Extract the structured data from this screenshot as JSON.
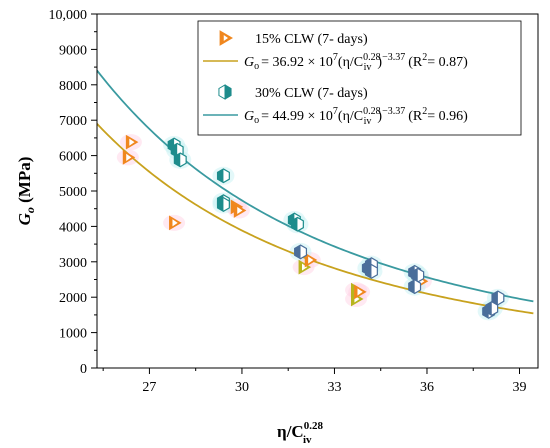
{
  "chart_data": {
    "type": "scatter",
    "xlabel": "η/C",
    "xlabel_sub": "iv",
    "xlabel_sup": "0.28",
    "ylabel": "G",
    "ylabel_sub": "o",
    "ylabel_unit": " (MPa)",
    "xlim": [
      25.3,
      39.6
    ],
    "ylim": [
      0,
      10000
    ],
    "x_ticks": [
      27,
      30,
      33,
      36,
      39
    ],
    "x_tick_labels": [
      "27",
      "30",
      "33",
      "36",
      "39"
    ],
    "y_ticks": [
      0,
      1000,
      2000,
      3000,
      4000,
      5000,
      6000,
      7000,
      8000,
      9000,
      10000
    ],
    "y_tick_labels": [
      "0",
      "1000",
      "2000",
      "3000",
      "4000",
      "5000",
      "6000",
      "7000",
      "8000",
      "9000",
      "10,000"
    ],
    "grid": false,
    "legend_position": "top-right",
    "series": [
      {
        "name": "15% CLW (7- days)",
        "marker": "triangle-right",
        "color": "#f0871e",
        "points": [
          {
            "x": 26.4,
            "y": 6380,
            "color": "#f0871e"
          },
          {
            "x": 26.3,
            "y": 5950,
            "color": "#f0871e"
          },
          {
            "x": 27.8,
            "y": 4100,
            "color": "#f0871e"
          },
          {
            "x": 29.8,
            "y": 4550,
            "color": "#f0871e"
          },
          {
            "x": 29.9,
            "y": 4450,
            "color": "#f0871e"
          },
          {
            "x": 32.0,
            "y": 2850,
            "color": "#b8b41e"
          },
          {
            "x": 32.2,
            "y": 3050,
            "color": "#f0871e"
          },
          {
            "x": 33.7,
            "y": 2200,
            "color": "#b8b41e"
          },
          {
            "x": 33.7,
            "y": 1950,
            "color": "#b8b41e"
          },
          {
            "x": 33.8,
            "y": 2150,
            "color": "#f0871e"
          },
          {
            "x": 35.8,
            "y": 2450,
            "color": "#f0871e"
          }
        ],
        "fit_label_prefix": "G",
        "fit_label_sub": "o",
        "fit_label_body": "= 36.92 × 10",
        "fit_label_exp1": "7",
        "fit_label_mid": "(η/C",
        "fit_label_sub2": "iv",
        "fit_label_sup2": "0.28",
        "fit_label_close": ")",
        "fit_label_exp2": "−3.37",
        "fit_label_r2_open": "(R",
        "fit_label_r2_sup": "2",
        "fit_label_r2_val": "= 0.87)",
        "fit": {
          "a": 369200000,
          "b": -3.37,
          "color": "#c8a21e"
        }
      },
      {
        "name": "30% CLW (7- days)",
        "marker": "hexagon",
        "color": "#1e8c8c",
        "points": [
          {
            "x": 27.8,
            "y": 6300,
            "color": "#1e8c8c"
          },
          {
            "x": 27.9,
            "y": 6150,
            "color": "#1e8c8c"
          },
          {
            "x": 28.0,
            "y": 5880,
            "color": "#1e8c8c"
          },
          {
            "x": 29.4,
            "y": 5430,
            "color": "#1e8c8c"
          },
          {
            "x": 29.4,
            "y": 4700,
            "color": "#1e8c8c"
          },
          {
            "x": 29.4,
            "y": 4620,
            "color": "#1e8c8c"
          },
          {
            "x": 31.7,
            "y": 4180,
            "color": "#1e8c8c"
          },
          {
            "x": 31.8,
            "y": 4060,
            "color": "#1e8c8c"
          },
          {
            "x": 31.9,
            "y": 3280,
            "color": "#4a6e9a"
          },
          {
            "x": 34.1,
            "y": 2820,
            "color": "#4a6e9a"
          },
          {
            "x": 34.2,
            "y": 2920,
            "color": "#4a6e9a"
          },
          {
            "x": 34.2,
            "y": 2730,
            "color": "#4a6e9a"
          },
          {
            "x": 35.6,
            "y": 2700,
            "color": "#4a6e9a"
          },
          {
            "x": 35.7,
            "y": 2620,
            "color": "#4a6e9a"
          },
          {
            "x": 35.6,
            "y": 2300,
            "color": "#4a6e9a"
          },
          {
            "x": 38.0,
            "y": 1600,
            "color": "#4a6e9a"
          },
          {
            "x": 38.1,
            "y": 1680,
            "color": "#4a6e9a"
          },
          {
            "x": 38.3,
            "y": 1980,
            "color": "#4a6e9a"
          }
        ],
        "fit_label_prefix": "G",
        "fit_label_sub": "o",
        "fit_label_body": "= 44.99 × 10",
        "fit_label_exp1": "7",
        "fit_label_mid": "(η/C",
        "fit_label_sub2": "iv",
        "fit_label_sup2": "0.28",
        "fit_label_close": ")",
        "fit_label_exp2": "−3.37",
        "fit_label_r2_open": "(R",
        "fit_label_r2_sup": "2",
        "fit_label_r2_val": "= 0.96)",
        "fit": {
          "a": 449900000,
          "b": -3.37,
          "color": "#3a9aa0"
        }
      }
    ]
  }
}
